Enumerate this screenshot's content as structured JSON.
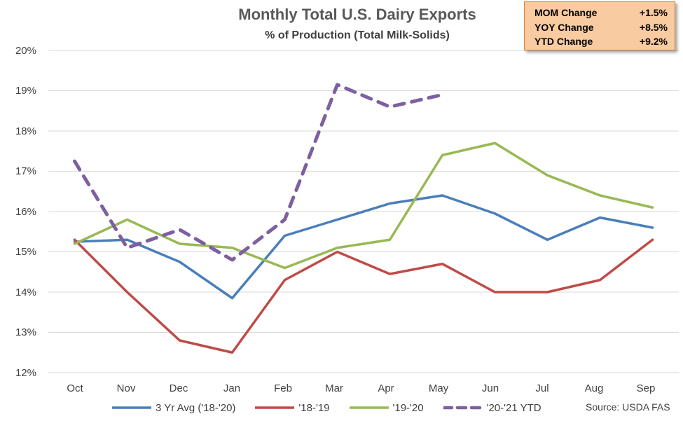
{
  "chart_data": {
    "type": "line",
    "title": "Monthly Total U.S. Dairy Exports",
    "subtitle": "% of Production  (Total Milk-Solids)",
    "categories": [
      "Oct",
      "Nov",
      "Dec",
      "Jan",
      "Feb",
      "Mar",
      "Apr",
      "May",
      "Jun",
      "Jul",
      "Aug",
      "Sep"
    ],
    "y_ticks": [
      "12%",
      "13%",
      "14%",
      "15%",
      "16%",
      "17%",
      "18%",
      "19%",
      "20%"
    ],
    "ylim": [
      12,
      20
    ],
    "grid": true,
    "legend_position": "bottom",
    "series": [
      {
        "name": "3 Yr Avg ('18-'20)",
        "color": "#4a7ebb",
        "dashed": false,
        "values": [
          15.25,
          15.3,
          14.75,
          13.85,
          15.4,
          15.8,
          16.2,
          16.4,
          15.95,
          15.3,
          15.85,
          15.6
        ]
      },
      {
        "name": "'18-'19",
        "color": "#be4b48",
        "dashed": false,
        "values": [
          15.3,
          14.0,
          12.8,
          12.5,
          14.3,
          15.0,
          14.45,
          14.7,
          14.0,
          14.0,
          14.3,
          15.3
        ]
      },
      {
        "name": "'19-'20",
        "color": "#98b954",
        "dashed": false,
        "values": [
          15.2,
          15.8,
          15.2,
          15.1,
          14.6,
          15.1,
          15.3,
          17.4,
          17.7,
          16.9,
          16.4,
          16.1
        ]
      },
      {
        "name": "'20-'21 YTD",
        "color": "#7d60a0",
        "dashed": true,
        "values": [
          17.25,
          15.1,
          15.55,
          14.8,
          15.8,
          19.15,
          18.6,
          18.9,
          null,
          null,
          null,
          null
        ]
      }
    ],
    "source": "Source: USDA FAS"
  },
  "stats": [
    {
      "label": "MOM Change",
      "value": "+1.5%"
    },
    {
      "label": "YOY Change",
      "value": "+8.5%"
    },
    {
      "label": "YTD Change",
      "value": "+9.2%"
    }
  ]
}
